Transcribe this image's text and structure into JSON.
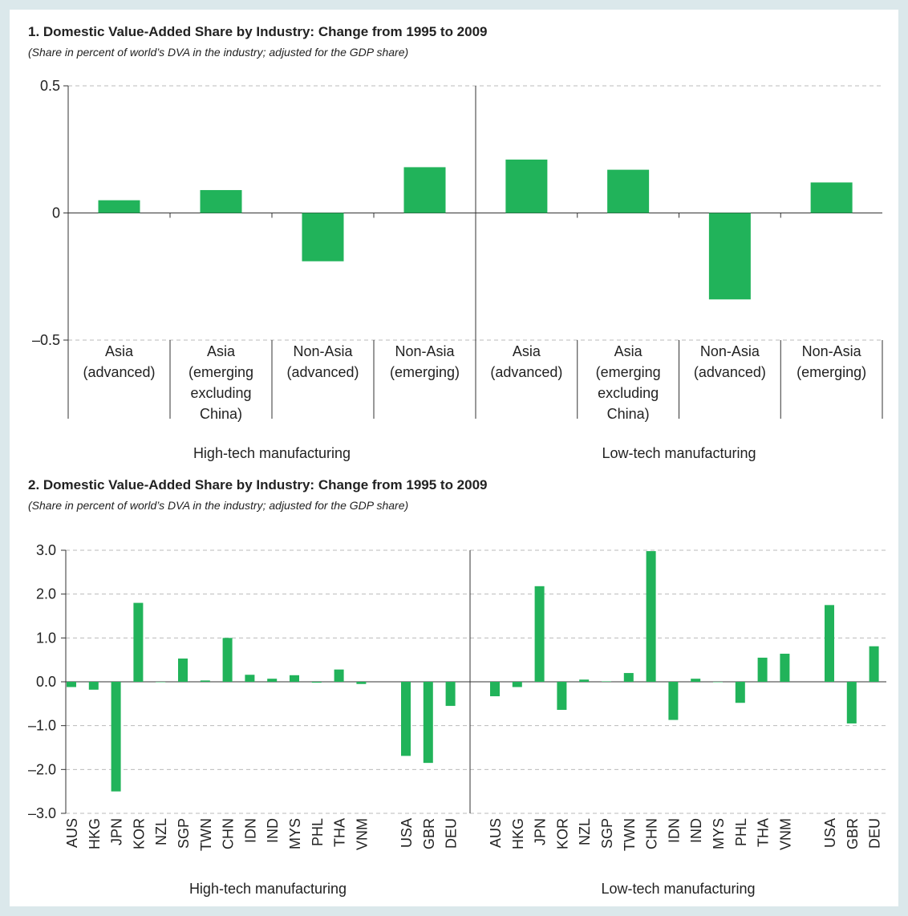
{
  "charts": [
    {
      "type": "bar",
      "title": "1. Domestic Value-Added Share by Industry: Change from 1995 to 2009",
      "subtitle": "(Share in percent of world’s DVA in the industry; adjusted for the GDP share)",
      "categories": [
        "Asia (advanced)",
        "Asia (emerging excluding China)",
        "Non-Asia (advanced)",
        "Non-Asia (emerging)"
      ],
      "groups": [
        {
          "name": "High-tech manufacturing",
          "values": [
            0.05,
            0.09,
            -0.19,
            0.18
          ]
        },
        {
          "name": "Low-tech manufacturing",
          "values": [
            0.21,
            0.17,
            -0.34,
            0.12
          ]
        }
      ],
      "color": "#21b35a",
      "ylim": [
        -0.5,
        0.5
      ],
      "yticks": [
        0.5,
        0,
        {
          "value": -0.5,
          "label": "–0.5"
        }
      ],
      "grid": true
    },
    {
      "type": "bar",
      "title": "2. Domestic Value-Added Share by Industry: Change from 1995 to 2009",
      "subtitle": "(Share in percent of world’s DVA in the industry; adjusted for the GDP share)",
      "categories": [
        "AUS",
        "HKG",
        "JPN",
        "KOR",
        "NZL",
        "SGP",
        "TWN",
        "CHN",
        "IDN",
        "IND",
        "MYS",
        "PHL",
        "THA",
        "VNM",
        null,
        "USA",
        "GBR",
        "DEU"
      ],
      "groups": [
        {
          "name": "High-tech manufacturing",
          "values": [
            -0.12,
            -0.18,
            -2.5,
            1.8,
            0,
            0.53,
            0.03,
            1.0,
            0.16,
            0.07,
            0.15,
            -0.02,
            0.28,
            -0.05,
            null,
            -1.69,
            -1.85,
            -0.55
          ]
        },
        {
          "name": "Low-tech manufacturing",
          "values": [
            -0.33,
            -0.12,
            2.18,
            -0.64,
            0.05,
            0.01,
            0.2,
            2.98,
            -0.87,
            0.07,
            0,
            -0.48,
            0.55,
            0.64,
            null,
            1.75,
            -0.95,
            0.81
          ]
        }
      ],
      "color": "#21b35a",
      "ylim": [
        -3,
        3
      ],
      "yticks": [
        {
          "value": 3,
          "label": "3.0"
        },
        {
          "value": 2,
          "label": "2.0"
        },
        {
          "value": 1,
          "label": "1.0"
        },
        {
          "value": 0,
          "label": "0.0"
        },
        {
          "value": -1,
          "label": "–1.0"
        },
        {
          "value": -2,
          "label": "–2.0"
        },
        {
          "value": -3,
          "label": "–3.0"
        }
      ],
      "grid": true
    }
  ]
}
